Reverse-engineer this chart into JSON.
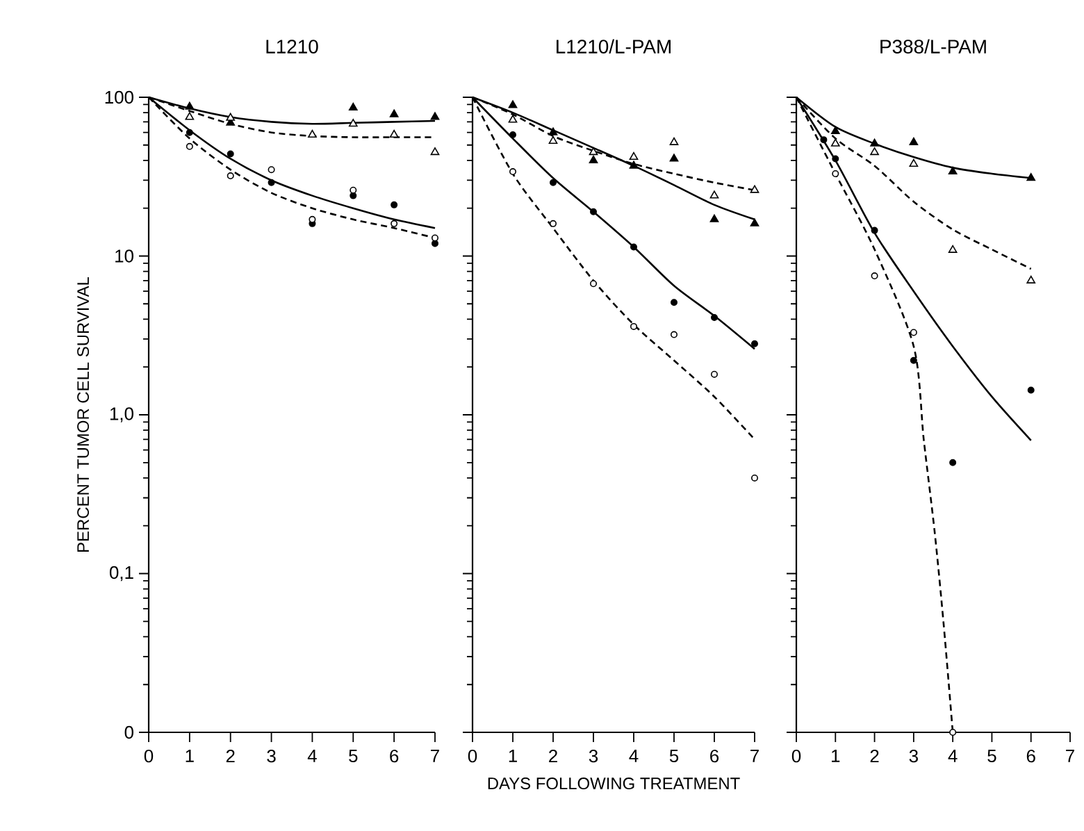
{
  "chart_data": [
    {
      "type": "scatter",
      "title": "L1210",
      "ylabel": "PERCENT TUMOR CELL SURVIVAL",
      "log": "y",
      "xlim": [
        0,
        7
      ],
      "ylim": [
        0.01,
        100
      ],
      "xticks": [
        0,
        1,
        2,
        3,
        4,
        5,
        6,
        7
      ],
      "yticks": [
        {
          "value": 0.01,
          "label": "0"
        },
        {
          "value": 0.1,
          "label": "0,1"
        },
        {
          "value": 1,
          "label": "1,0"
        },
        10,
        100
      ],
      "series": [
        {
          "x": [
            1,
            2,
            5,
            6,
            7
          ],
          "values": [
            87,
            69,
            86,
            78,
            75
          ],
          "color": "#000000",
          "marker": "triangle"
        },
        {
          "x": [
            1,
            2,
            4,
            5,
            6,
            7
          ],
          "values": [
            75,
            74,
            58,
            68,
            58,
            45
          ],
          "color": "#ffffff",
          "marker": "triangle"
        },
        {
          "x": [
            1,
            2,
            3,
            4,
            5,
            6,
            7
          ],
          "values": [
            60,
            44,
            29,
            16,
            24,
            21,
            12
          ],
          "color": "#000000",
          "marker": "circle"
        },
        {
          "x": [
            1,
            2,
            3,
            4,
            5,
            6,
            7
          ],
          "values": [
            49,
            32,
            35,
            17,
            26,
            16,
            13
          ],
          "color": "#ffffff",
          "marker": "circle"
        },
        {
          "type": "line",
          "x": [
            0,
            1,
            2,
            3,
            4,
            5,
            6,
            7
          ],
          "values": [
            100,
            85,
            75,
            70,
            68,
            69,
            70,
            71
          ],
          "color": "#000000",
          "line_style": "solid"
        },
        {
          "type": "line",
          "x": [
            0,
            1,
            2,
            3,
            4,
            5,
            6,
            7
          ],
          "values": [
            100,
            82,
            68,
            60,
            57,
            56,
            56,
            56
          ],
          "color": "#000000",
          "line_style": "dashed"
        },
        {
          "type": "line",
          "x": [
            0,
            1,
            2,
            3,
            4,
            5,
            6,
            7
          ],
          "values": [
            100,
            62,
            41,
            30,
            24,
            20,
            17,
            15
          ],
          "color": "#000000",
          "line_style": "solid"
        },
        {
          "type": "line",
          "x": [
            0,
            1,
            2,
            3,
            4,
            5,
            6,
            7
          ],
          "values": [
            100,
            55,
            35,
            25,
            20,
            17,
            15,
            13
          ],
          "color": "#000000",
          "line_style": "dashed"
        }
      ]
    },
    {
      "type": "scatter",
      "title": "L1210/L-PAM",
      "xlabel": "DAYS FOLLOWING TREATMENT",
      "log": "y",
      "xlim": [
        0,
        7
      ],
      "ylim": [
        0.01,
        100
      ],
      "xticks": [
        0,
        1,
        2,
        3,
        4,
        5,
        6,
        7
      ],
      "yticks": [
        {
          "value": 0.01,
          "label": null
        },
        {
          "value": 0.1,
          "label": null
        },
        {
          "value": 1,
          "label": null
        },
        {
          "value": 10,
          "label": null
        },
        {
          "value": 100,
          "label": null
        }
      ],
      "tick_labels": "x",
      "series": [
        {
          "x": [
            1,
            2,
            3,
            4,
            5,
            6,
            7
          ],
          "values": [
            89,
            60,
            40,
            37,
            41,
            17,
            16
          ],
          "color": "#000000",
          "marker": "triangle"
        },
        {
          "x": [
            1,
            2,
            3,
            4,
            5,
            6,
            7
          ],
          "values": [
            72,
            53,
            45,
            42,
            52,
            24,
            26
          ],
          "color": "#ffffff",
          "marker": "triangle"
        },
        {
          "x": [
            1,
            2,
            3,
            4,
            5,
            6,
            7
          ],
          "values": [
            58,
            29,
            19,
            11.4,
            5.1,
            4.1,
            2.8
          ],
          "color": "#000000",
          "marker": "circle"
        },
        {
          "x": [
            1,
            2,
            3,
            4,
            5,
            6,
            7
          ],
          "values": [
            34,
            16,
            6.7,
            3.6,
            3.2,
            1.8,
            0.4
          ],
          "color": "#ffffff",
          "marker": "circle"
        },
        {
          "type": "line",
          "x": [
            0,
            1,
            2,
            3,
            4,
            5,
            6,
            7
          ],
          "values": [
            100,
            80,
            62,
            48,
            37,
            28,
            21,
            17
          ],
          "color": "#000000",
          "line_style": "solid"
        },
        {
          "type": "line",
          "x": [
            0,
            1,
            2,
            3,
            4,
            5,
            6,
            7
          ],
          "values": [
            100,
            78,
            57,
            46,
            38,
            33,
            29,
            26
          ],
          "color": "#000000",
          "line_style": "dashed"
        },
        {
          "type": "line",
          "x": [
            0,
            1,
            2,
            3,
            4,
            5,
            6,
            7
          ],
          "values": [
            100,
            55,
            31,
            19,
            11.4,
            6.5,
            4.2,
            2.6
          ],
          "color": "#000000",
          "line_style": "solid"
        },
        {
          "type": "line",
          "x": [
            0,
            1,
            2,
            3,
            4,
            5,
            6,
            7
          ],
          "values": [
            100,
            33,
            15,
            7,
            3.7,
            2.2,
            1.3,
            0.7
          ],
          "color": "#000000",
          "line_style": "dashed"
        }
      ]
    },
    {
      "type": "scatter",
      "title": "P388/L-PAM",
      "log": "y",
      "xlim": [
        0,
        7
      ],
      "ylim": [
        0.01,
        100
      ],
      "xticks": [
        0,
        1,
        2,
        3,
        4,
        5,
        6,
        7
      ],
      "yticks": [
        {
          "value": 0.01,
          "label": null
        },
        {
          "value": 0.1,
          "label": null
        },
        {
          "value": 1,
          "label": null
        },
        {
          "value": 10,
          "label": null
        },
        {
          "value": 100,
          "label": null
        }
      ],
      "tick_labels": "x",
      "series": [
        {
          "x": [
            1,
            2,
            3,
            4,
            6
          ],
          "values": [
            61,
            51,
            52,
            34,
            31
          ],
          "color": "#000000",
          "marker": "triangle"
        },
        {
          "x": [
            1,
            2,
            3,
            4,
            6
          ],
          "values": [
            51,
            45,
            38,
            10.9,
            7
          ],
          "color": "#ffffff",
          "marker": "triangle"
        },
        {
          "x": [
            0.7,
            1,
            2,
            3,
            4,
            6
          ],
          "values": [
            54,
            41,
            14.5,
            2.2,
            0.5,
            1.43
          ],
          "color": "#000000",
          "marker": "circle"
        },
        {
          "x": [
            1,
            2,
            3,
            4
          ],
          "values": [
            33,
            7.5,
            3.3,
            0.01
          ],
          "color": "#ffffff",
          "marker": "circle"
        },
        {
          "type": "line",
          "x": [
            0,
            1,
            2,
            3,
            4,
            5,
            6
          ],
          "values": [
            100,
            65,
            51,
            42,
            36,
            33,
            31
          ],
          "color": "#000000",
          "line_style": "solid"
        },
        {
          "type": "line",
          "x": [
            0,
            1,
            2,
            3,
            4,
            5,
            6
          ],
          "values": [
            100,
            55,
            37,
            22,
            14.7,
            11,
            8.3
          ],
          "color": "#000000",
          "line_style": "dashed"
        },
        {
          "type": "line",
          "x": [
            0,
            1,
            2,
            3,
            4,
            5,
            6
          ],
          "values": [
            100,
            40,
            14,
            6,
            2.7,
            1.3,
            0.69
          ],
          "color": "#000000",
          "line_style": "solid"
        },
        {
          "type": "line",
          "x": [
            0,
            1,
            2,
            3,
            3.26,
            3.54,
            3.77,
            4
          ],
          "values": [
            100,
            33,
            11,
            2.7,
            0.69,
            0.18,
            0.047,
            0.01
          ],
          "color": "#000000",
          "line_style": "dashed"
        }
      ]
    }
  ]
}
